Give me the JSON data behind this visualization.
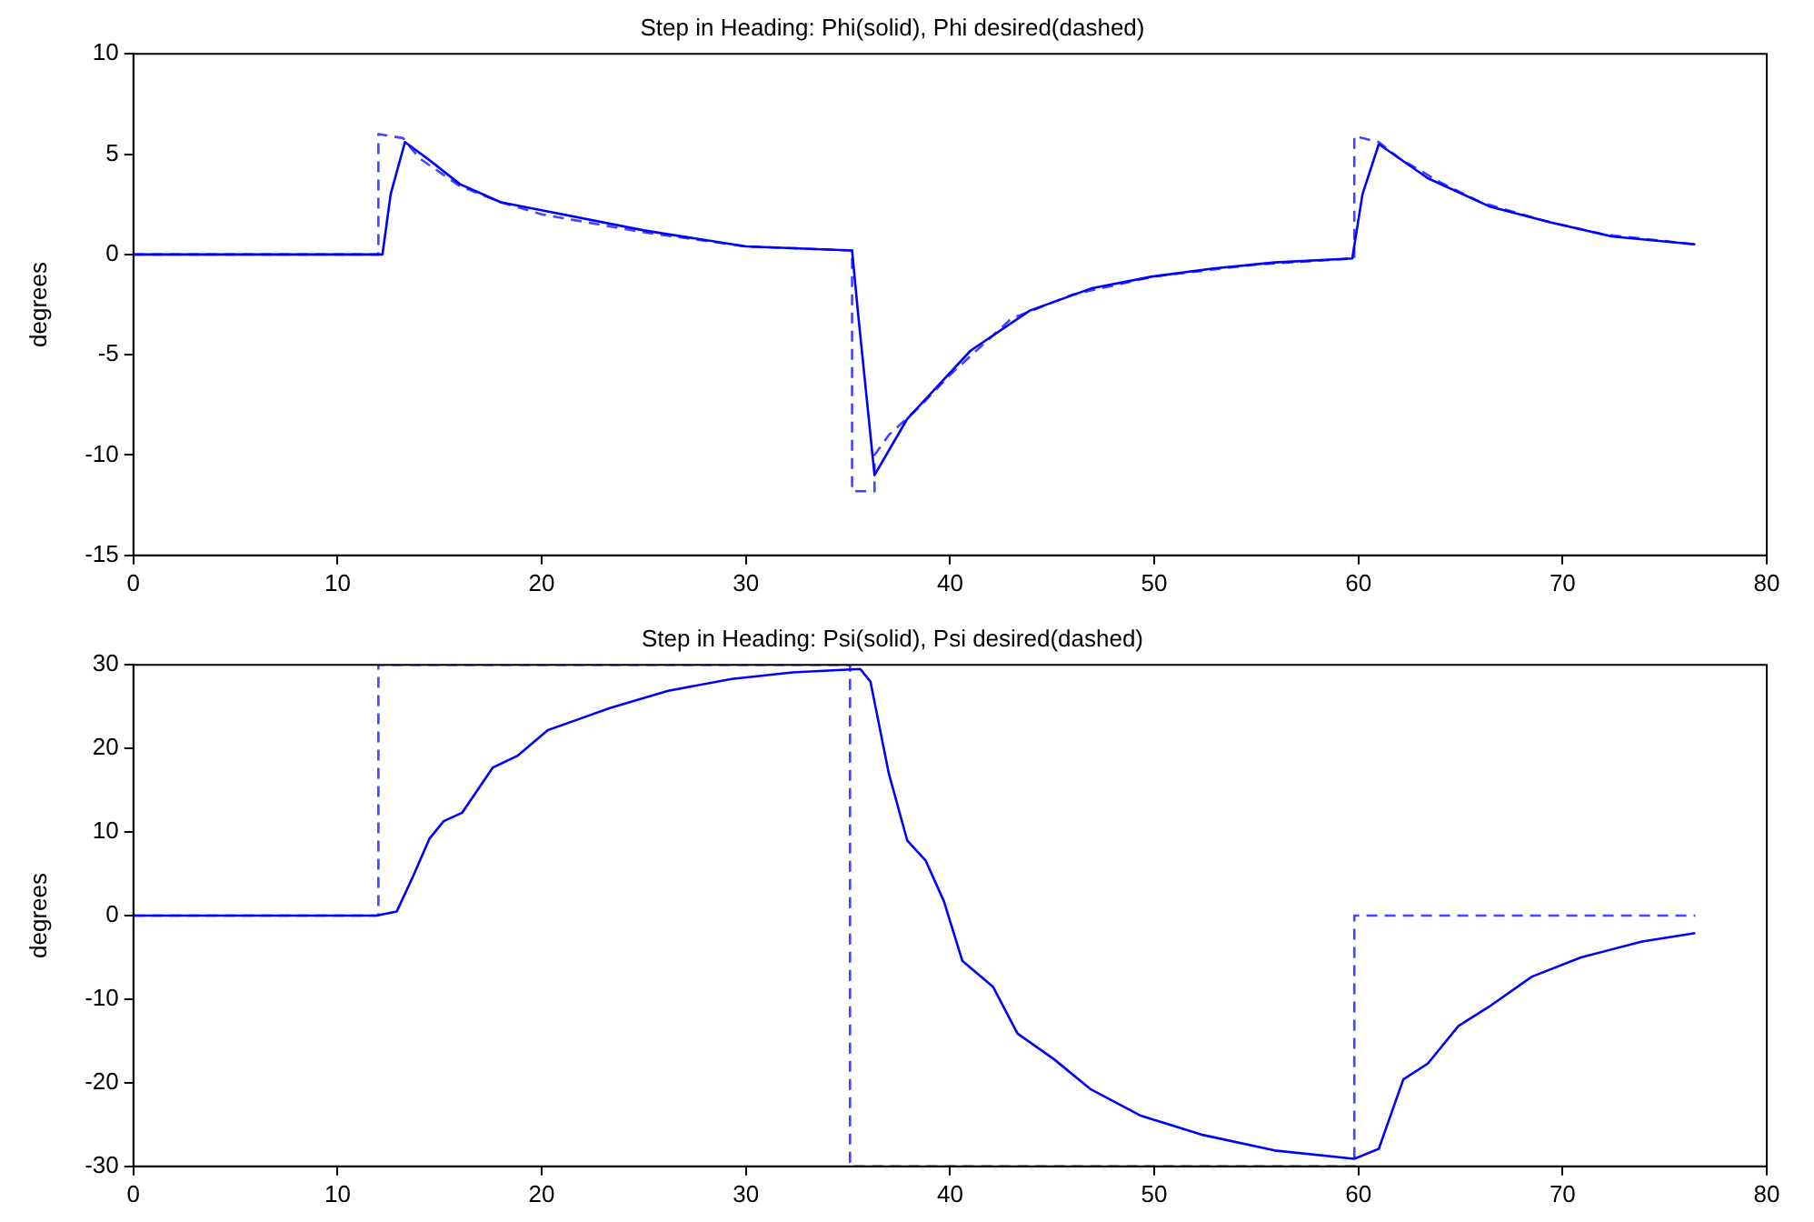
{
  "chart_data": [
    {
      "type": "line",
      "title": "Step in Heading: Phi(solid), Phi desired(dashed)",
      "ylabel": "degrees",
      "xlim": [
        0,
        80
      ],
      "xticks": [
        0,
        10,
        20,
        30,
        40,
        50,
        60,
        70,
        80
      ],
      "ylim": [
        -15,
        10
      ],
      "yticks": [
        -15,
        -10,
        -5,
        0,
        5,
        10
      ],
      "grid": false,
      "legend": false,
      "marker": "none",
      "series": [
        {
          "color": "#0000ff",
          "line_style": "solid",
          "x": [
            0,
            12.2,
            12.6,
            13.3,
            14.5,
            16,
            18,
            20,
            25,
            30,
            35.2,
            35.5,
            36.3,
            37.9,
            41,
            43.9,
            46.9,
            49.9,
            52.9,
            55.9,
            59.7,
            60.2,
            61,
            63.4,
            66.4,
            69.4,
            72.4,
            76.5
          ],
          "values": [
            0,
            0,
            3,
            5.6,
            4.7,
            3.5,
            2.6,
            2.2,
            1.2,
            0.4,
            0.2,
            -3,
            -11.0,
            -8.2,
            -4.8,
            -2.8,
            -1.7,
            -1.1,
            -0.7,
            -0.4,
            -0.2,
            3,
            5.5,
            3.8,
            2.4,
            1.6,
            0.9,
            0.5
          ]
        },
        {
          "color": "#4444ff",
          "line_style": "dashed",
          "x": [
            0,
            12,
            12,
            13.2,
            14,
            16,
            18,
            20,
            25,
            30,
            35.2,
            35.2,
            36.3,
            36.3,
            37,
            38.5,
            40,
            43,
            46,
            50,
            55,
            59.8,
            59.8,
            61,
            62,
            64,
            66,
            69,
            72,
            76.5
          ],
          "values": [
            0,
            0,
            6.0,
            5.8,
            4.8,
            3.4,
            2.6,
            2.0,
            1.1,
            0.4,
            0.2,
            -11.8,
            -11.8,
            -10.0,
            -9.0,
            -7.6,
            -6.0,
            -3.2,
            -2.0,
            -1.1,
            -0.5,
            -0.2,
            5.9,
            5.6,
            4.8,
            3.6,
            2.6,
            1.7,
            1.0,
            0.5
          ]
        }
      ]
    },
    {
      "type": "line",
      "title": "Step in Heading: Psi(solid), Psi desired(dashed)",
      "ylabel": "degrees",
      "xlim": [
        0,
        80
      ],
      "xticks": [
        0,
        10,
        20,
        30,
        40,
        50,
        60,
        70,
        80
      ],
      "ylim": [
        -30,
        30
      ],
      "yticks": [
        -30,
        -20,
        -10,
        0,
        10,
        20,
        30
      ],
      "grid": false,
      "legend": false,
      "marker": "none",
      "series": [
        {
          "color": "#0000ff",
          "line_style": "solid",
          "x": [
            0,
            11.9,
            12.9,
            13.7,
            14.5,
            15.2,
            16.1,
            17.6,
            18.8,
            20.3,
            21.7,
            23.3,
            26.2,
            29.3,
            32.3,
            35.6,
            36.1,
            37.0,
            37.9,
            38.8,
            39.7,
            40.6,
            42.1,
            43.3,
            45.1,
            46.9,
            49.3,
            52.3,
            55.9,
            59.8,
            61.0,
            62.2,
            63.4,
            64.9,
            66.4,
            68.5,
            70.9,
            73.9,
            76.5
          ],
          "values": [
            0,
            0,
            0.5,
            4.7,
            9.2,
            11.3,
            12.3,
            17.7,
            19.1,
            22.2,
            23.4,
            24.8,
            26.9,
            28.3,
            29.1,
            29.5,
            28.0,
            17.0,
            9.0,
            6.6,
            1.7,
            -5.4,
            -8.5,
            -14.1,
            -17.2,
            -20.8,
            -23.9,
            -26.2,
            -28.1,
            -29.1,
            -27.9,
            -19.6,
            -17.7,
            -13.2,
            -10.9,
            -7.3,
            -5.0,
            -3.1,
            -2.1
          ]
        },
        {
          "color": "#4444ff",
          "line_style": "dashed",
          "x": [
            0,
            12,
            12,
            35.1,
            35.1,
            59.8,
            59.8,
            76.5
          ],
          "values": [
            0,
            0,
            30,
            30,
            -30,
            -30,
            0,
            0
          ]
        }
      ]
    }
  ]
}
